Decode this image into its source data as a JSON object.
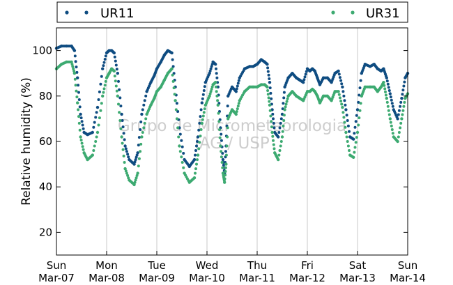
{
  "chart_data": {
    "type": "scatter",
    "ylabel": "Relative humidity (%)",
    "ylim": [
      10,
      110
    ],
    "yticks": [
      20,
      40,
      60,
      80,
      100
    ],
    "xlim": [
      0,
      7
    ],
    "xticks": [
      {
        "day": "Sun",
        "date": "Mar-07"
      },
      {
        "day": "Mon",
        "date": "Mar-08"
      },
      {
        "day": "Tue",
        "date": "Mar-09"
      },
      {
        "day": "Wed",
        "date": "Mar-10"
      },
      {
        "day": "Thu",
        "date": "Mar-11"
      },
      {
        "day": "Fri",
        "date": "Mar-12"
      },
      {
        "day": "Sat",
        "date": "Mar-13"
      },
      {
        "day": "Sun",
        "date": "Mar-14"
      }
    ],
    "grid": "vertical",
    "legend": "top",
    "watermark": [
      "Grupo de Micrometeorologia",
      "IAG / USP"
    ],
    "series": [
      {
        "name": "UR11",
        "color": "#0f4c81",
        "x": [
          0.0,
          0.1,
          0.2,
          0.3,
          0.36,
          0.42,
          0.48,
          0.55,
          0.62,
          0.72,
          0.82,
          0.92,
          1.0,
          1.05,
          1.1,
          1.15,
          1.22,
          1.3,
          1.37,
          1.45,
          1.55,
          1.62,
          1.7,
          1.8,
          1.88,
          1.95,
          2.0,
          2.08,
          2.15,
          2.22,
          2.3,
          2.37,
          2.45,
          2.55,
          2.65,
          2.75,
          2.82,
          2.9,
          2.97,
          3.05,
          3.12,
          3.17,
          3.22,
          3.27,
          3.32,
          3.35,
          3.38,
          3.42,
          3.5,
          3.58,
          3.65,
          3.75,
          3.85,
          3.92,
          4.0,
          4.08,
          4.15,
          4.2,
          4.25,
          4.3,
          4.35,
          4.42,
          4.5,
          4.55,
          4.62,
          4.7,
          4.78,
          4.85,
          4.92,
          5.0,
          5.05,
          5.1,
          5.15,
          5.2,
          5.25,
          5.32,
          5.4,
          5.48,
          5.55,
          5.62,
          5.7,
          5.77,
          5.85,
          5.92,
          6.0,
          6.08,
          6.15,
          6.25,
          6.33,
          6.4,
          6.47,
          6.52,
          6.58,
          6.65,
          6.72,
          6.8,
          6.88,
          6.95,
          7.0
        ],
        "y": [
          101,
          102,
          102,
          102,
          100,
          88,
          72,
          64,
          63,
          64,
          75,
          92,
          99,
          100,
          100,
          99,
          90,
          72,
          58,
          52,
          50,
          55,
          72,
          82,
          86,
          89,
          92,
          95,
          98,
          100,
          99,
          84,
          66,
          52,
          49,
          52,
          62,
          77,
          86,
          90,
          95,
          94,
          84,
          66,
          52,
          46,
          58,
          80,
          84,
          82,
          88,
          92,
          93,
          93,
          94,
          96,
          95,
          94,
          86,
          74,
          64,
          62,
          72,
          84,
          88,
          90,
          88,
          87,
          86,
          92,
          91,
          92,
          91,
          88,
          85,
          88,
          88,
          86,
          90,
          91,
          84,
          74,
          62,
          61,
          74,
          90,
          94,
          93,
          94,
          92,
          91,
          92,
          88,
          81,
          74,
          70,
          79,
          88,
          90
        ]
      },
      {
        "name": "UR31",
        "color": "#3daa71",
        "x": [
          0.0,
          0.1,
          0.2,
          0.3,
          0.36,
          0.42,
          0.48,
          0.55,
          0.62,
          0.72,
          0.82,
          0.92,
          1.0,
          1.05,
          1.1,
          1.15,
          1.22,
          1.3,
          1.37,
          1.45,
          1.55,
          1.62,
          1.7,
          1.8,
          1.88,
          1.95,
          2.0,
          2.08,
          2.15,
          2.22,
          2.3,
          2.37,
          2.45,
          2.55,
          2.65,
          2.75,
          2.82,
          2.9,
          2.97,
          3.05,
          3.12,
          3.17,
          3.22,
          3.27,
          3.32,
          3.35,
          3.38,
          3.42,
          3.5,
          3.58,
          3.65,
          3.75,
          3.85,
          3.92,
          4.0,
          4.08,
          4.15,
          4.2,
          4.25,
          4.3,
          4.35,
          4.42,
          4.5,
          4.55,
          4.62,
          4.7,
          4.78,
          4.85,
          4.92,
          5.0,
          5.05,
          5.1,
          5.15,
          5.2,
          5.25,
          5.32,
          5.4,
          5.48,
          5.55,
          5.62,
          5.7,
          5.77,
          5.85,
          5.92,
          6.0,
          6.08,
          6.15,
          6.25,
          6.33,
          6.4,
          6.47,
          6.52,
          6.58,
          6.65,
          6.72,
          6.8,
          6.88,
          6.95,
          7.0
        ],
        "y": [
          92,
          94,
          95,
          95,
          90,
          77,
          62,
          55,
          52,
          54,
          64,
          80,
          88,
          90,
          92,
          91,
          80,
          62,
          48,
          43,
          41,
          46,
          62,
          72,
          76,
          79,
          82,
          84,
          87,
          90,
          92,
          78,
          58,
          46,
          42,
          44,
          54,
          68,
          76,
          80,
          85,
          86,
          76,
          58,
          46,
          42,
          50,
          70,
          74,
          72,
          78,
          82,
          84,
          84,
          84,
          85,
          85,
          84,
          76,
          64,
          55,
          52,
          62,
          74,
          80,
          82,
          80,
          79,
          78,
          82,
          82,
          83,
          82,
          80,
          77,
          80,
          80,
          78,
          82,
          82,
          75,
          64,
          54,
          53,
          64,
          80,
          84,
          84,
          84,
          82,
          84,
          86,
          79,
          70,
          62,
          60,
          70,
          79,
          81
        ]
      }
    ]
  }
}
